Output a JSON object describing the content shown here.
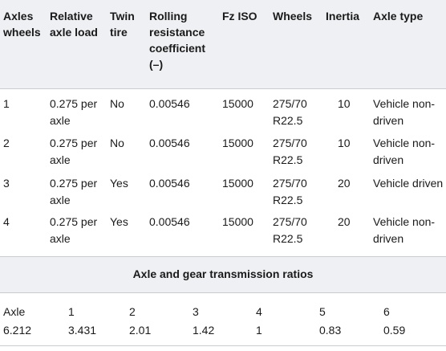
{
  "headers": [
    "Axles wheels",
    "Relative axle load",
    "Twin tire",
    "Rolling resistance coefficient (–)",
    "Fz ISO",
    "Wheels",
    "Inertia",
    "Axle type"
  ],
  "rows": [
    [
      "1",
      "0.275 per axle",
      "No",
      "0.00546",
      "15000",
      "275/70 R22.5",
      "10",
      "Vehicle non-driven"
    ],
    [
      "2",
      "0.275 per axle",
      "No",
      "0.00546",
      "15000",
      "275/70 R22.5",
      "10",
      "Vehicle non-driven"
    ],
    [
      "3",
      "0.275 per axle",
      "Yes",
      "0.00546",
      "15000",
      "275/70 R22.5",
      "20",
      "Vehicle driven"
    ],
    [
      "4",
      "0.275 per axle",
      "Yes",
      "0.00546",
      "15000",
      "275/70 R22.5",
      "20",
      "Vehicle non-driven"
    ]
  ],
  "ratios": {
    "title": "Axle and gear transmission ratios",
    "header_row": [
      "Axle",
      "1",
      "2",
      "3",
      "4",
      "5",
      "6"
    ],
    "value_row": [
      "6.212",
      "3.431",
      "2.01",
      "1.42",
      "1",
      "0.83",
      "0.59"
    ]
  }
}
